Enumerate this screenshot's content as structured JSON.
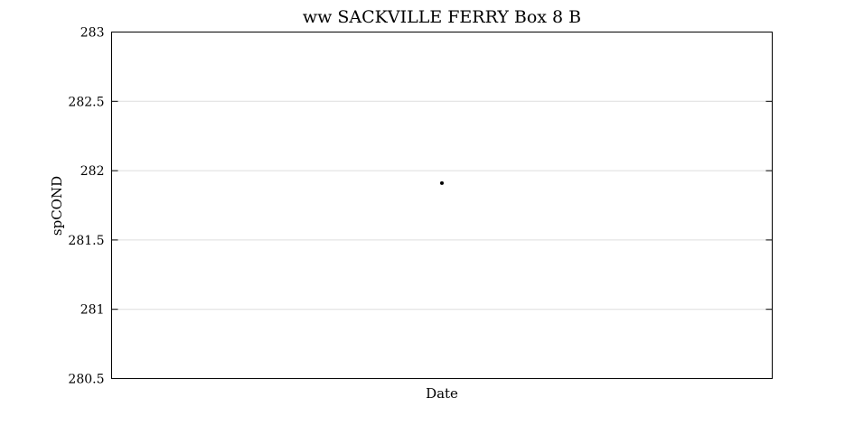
{
  "chart_data": {
    "type": "scatter",
    "title": "ww SACKVILLE FERRY Box 8 B",
    "xlabel": "Date",
    "ylabel": "spCOND",
    "ylim": [
      280.5,
      283
    ],
    "yticks": [
      "280.5",
      "281",
      "281.5",
      "282",
      "282.5",
      "283"
    ],
    "grid": true,
    "series": [
      {
        "points": [
          {
            "x": 0.5,
            "y": 281.91
          }
        ]
      }
    ],
    "xlim": [
      0,
      1
    ],
    "colors": {
      "point": "#000000",
      "grid": "#dddddd",
      "axes": "#000000"
    }
  }
}
